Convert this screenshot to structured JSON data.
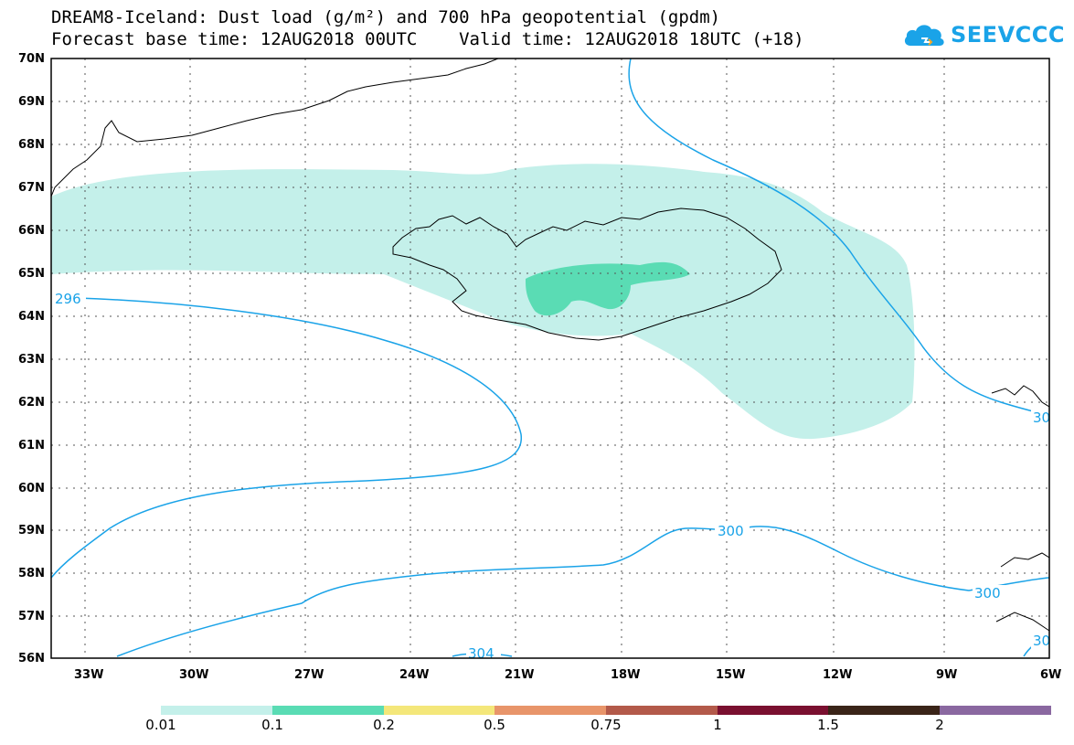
{
  "title": {
    "line1": "DREAM8-Iceland: Dust load (g/m²) and 700 hPa geopotential (gpdm)",
    "line2": "Forecast base time: 12AUG2018 00UTC    Valid time: 12AUG2018 18UTC (+18)"
  },
  "logo": {
    "text": "SEEVCCC",
    "icon": "cloud-icon",
    "color": "#1aa3e8"
  },
  "map": {
    "lat_range": [
      56,
      70
    ],
    "lon_range": [
      -34,
      -6
    ],
    "lat_labels": [
      "56N",
      "57N",
      "58N",
      "59N",
      "60N",
      "61N",
      "62N",
      "63N",
      "64N",
      "65N",
      "66N",
      "67N",
      "68N",
      "69N",
      "70N"
    ],
    "lon_labels": [
      "33W",
      "30W",
      "27W",
      "24W",
      "21W",
      "18W",
      "15W",
      "12W",
      "9W",
      "6W"
    ],
    "grid": "dotted",
    "contour_color": "#1aa3e8",
    "contour_labels": [
      "296",
      "300",
      "304",
      "300",
      "300",
      "30",
      "30"
    ]
  },
  "colorbar": {
    "colors": [
      "#c4f0ea",
      "#5adcb4",
      "#f4e77a",
      "#e8956a",
      "#b35a4a",
      "#7a1030",
      "#3a2418",
      "#8a68a0"
    ],
    "labels": [
      "0.01",
      "0.1",
      "0.2",
      "0.5",
      "0.75",
      "1",
      "1.5",
      "2"
    ]
  }
}
